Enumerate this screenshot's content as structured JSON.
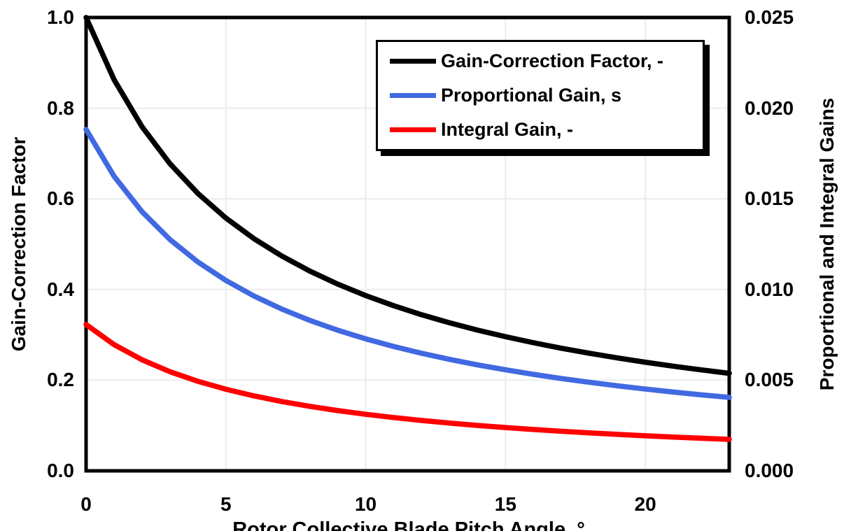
{
  "chart_data": {
    "type": "line",
    "title": "",
    "xlabel": "Rotor Collective Blade Pitch Angle, °",
    "ylabel_left": "Gain-Correction Factor",
    "ylabel_right": "Proportional and Integral Gains",
    "xlim": [
      0,
      23
    ],
    "ylim_left": [
      0.0,
      1.0
    ],
    "ylim_right": [
      0.0,
      0.025
    ],
    "grid": true,
    "gridline_color": "#ebebeb",
    "frame_color": "#000000",
    "legend_position": "top-right-inside",
    "x_ticks": [
      {
        "label": "0",
        "value": 0
      },
      {
        "label": "5",
        "value": 5
      },
      {
        "label": "10",
        "value": 10
      },
      {
        "label": "15",
        "value": 15
      },
      {
        "label": "20",
        "value": 20
      }
    ],
    "y_ticks_left": [
      {
        "label": "1.0",
        "value": 1.0
      },
      {
        "label": "0.8",
        "value": 0.8
      },
      {
        "label": "0.6",
        "value": 0.6
      },
      {
        "label": "0.4",
        "value": 0.4
      },
      {
        "label": "0.2",
        "value": 0.2
      },
      {
        "label": "0.0",
        "value": 0.0
      }
    ],
    "y_ticks_right": [
      {
        "label": "0.025",
        "value": 0.025
      },
      {
        "label": "0.020",
        "value": 0.02
      },
      {
        "label": "0.015",
        "value": 0.015
      },
      {
        "label": "0.010",
        "value": 0.01
      },
      {
        "label": "0.005",
        "value": 0.005
      },
      {
        "label": "0.000",
        "value": 0.0
      }
    ],
    "x": [
      0,
      1,
      2,
      3,
      4,
      5,
      6,
      7,
      8,
      9,
      10,
      11,
      12,
      13,
      14,
      15,
      16,
      17,
      18,
      19,
      20,
      21,
      22,
      23
    ],
    "series": [
      {
        "name": "Gain-Correction Factor, -",
        "axis": "left",
        "color": "#000000",
        "values": [
          1.0,
          0.863,
          0.7591,
          0.6775,
          0.6117,
          0.5576,
          0.5123,
          0.4738,
          0.4407,
          0.4119,
          0.3866,
          0.3643,
          0.3443,
          0.3265,
          0.3104,
          0.2959,
          0.2826,
          0.2704,
          0.2593,
          0.2491,
          0.2396,
          0.2308,
          0.2227,
          0.2151
        ]
      },
      {
        "name": "Proportional Gain, s",
        "axis": "right",
        "color": "#4169E1",
        "values": [
          0.018827,
          0.016247,
          0.014291,
          0.012755,
          0.011516,
          0.010498,
          0.009645,
          0.00892,
          0.008297,
          0.007755,
          0.007278,
          0.006859,
          0.006482,
          0.006147,
          0.005843,
          0.005571,
          0.005321,
          0.005091,
          0.004882,
          0.00469,
          0.004511,
          0.004345,
          0.004192,
          0.00405
        ]
      },
      {
        "name": "Integral Gain, -",
        "axis": "right",
        "color": "#FF0000",
        "values": [
          0.008069,
          0.006963,
          0.006125,
          0.005467,
          0.004936,
          0.0045,
          0.004134,
          0.003823,
          0.003556,
          0.003323,
          0.003119,
          0.00294,
          0.002778,
          0.002634,
          0.002504,
          0.002388,
          0.00228,
          0.002182,
          0.002092,
          0.00201,
          0.001933,
          0.001862,
          0.001797,
          0.001736
        ]
      }
    ]
  }
}
